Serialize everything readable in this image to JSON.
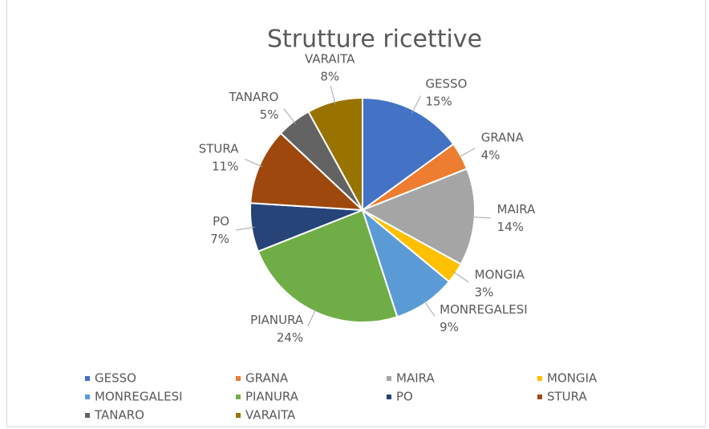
{
  "chart_data": {
    "type": "pie",
    "title": "Strutture ricettive",
    "categories": [
      "GESSO",
      "GRANA",
      "MAIRA",
      "MONGIA",
      "MONREGALESI",
      "PIANURA",
      "PO",
      "STURA",
      "TANARO",
      "VARAITA"
    ],
    "values": [
      15,
      4,
      14,
      3,
      9,
      24,
      7,
      11,
      5,
      8
    ],
    "value_labels": [
      "15%",
      "4%",
      "14%",
      "3%",
      "9%",
      "24%",
      "7%",
      "11%",
      "5%",
      "8%"
    ],
    "colors": [
      "#4472c4",
      "#ed7d31",
      "#a5a5a5",
      "#ffc000",
      "#5b9bd5",
      "#70ad47",
      "#264478",
      "#9e480e",
      "#636363",
      "#997300"
    ],
    "legend": "bottom"
  }
}
